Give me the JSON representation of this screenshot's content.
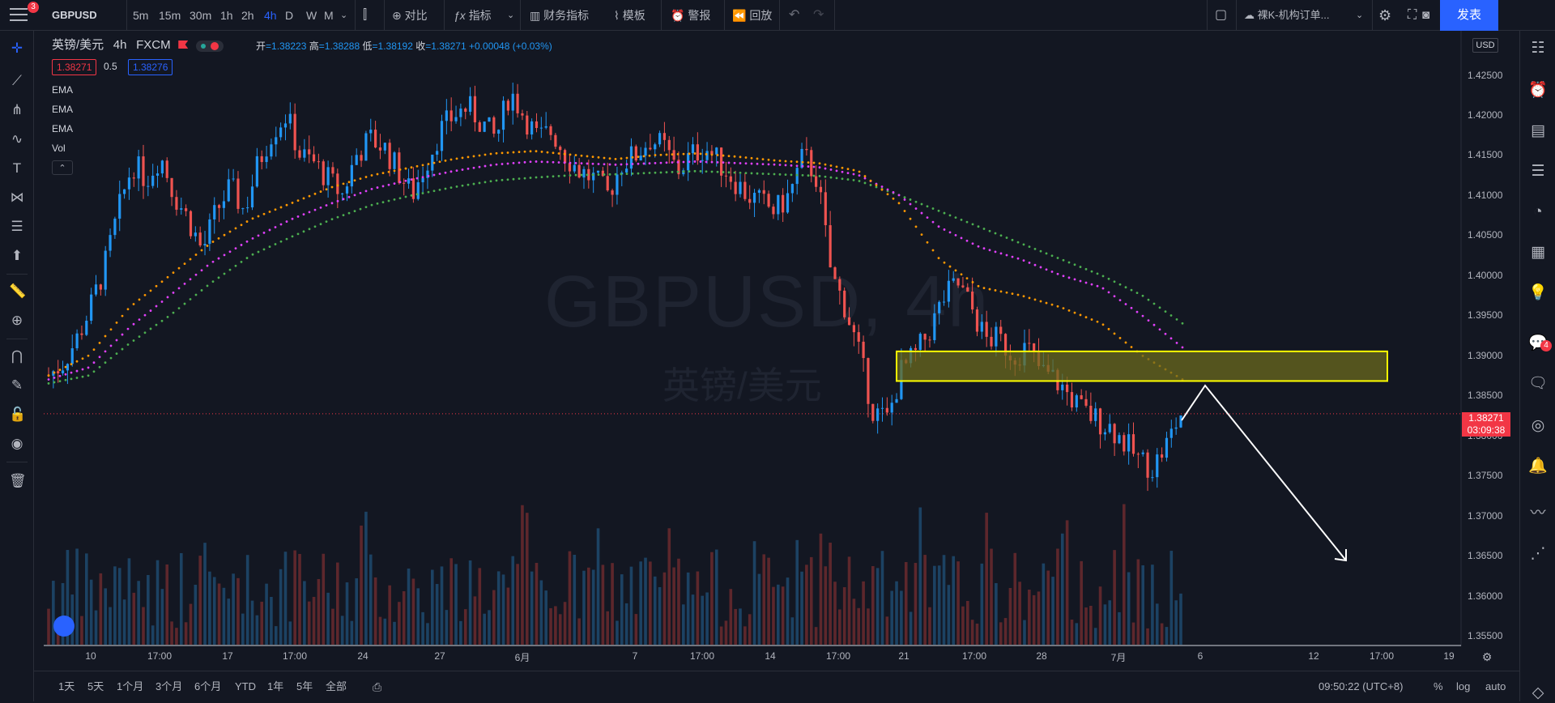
{
  "topbar": {
    "notif_count": "3",
    "symbol": "GBPUSD",
    "intervals": [
      "5m",
      "15m",
      "30m",
      "1h",
      "2h",
      "4h",
      "D",
      "W",
      "M"
    ],
    "active_interval": "4h",
    "compare_label": "对比",
    "indicators_label": "指标",
    "financials_label": "财务指标",
    "templates_label": "模板",
    "alert_label": "警报",
    "replay_label": "回放",
    "layout_name": "裸K-机构订单...",
    "publish_label": "发表"
  },
  "legend": {
    "title": "英镑/美元",
    "interval": "4h",
    "exchange": "FXCM",
    "open_label": "开",
    "open": "=1.38223",
    "high_label": "高",
    "high": "=1.38288",
    "low_label": "低",
    "low": "=1.38192",
    "close_label": "收",
    "close": "=1.38271",
    "change": "+0.00048 (+0.03%)",
    "bid": "1.38271",
    "spread": "0.5",
    "ask": "1.38276",
    "indicators": [
      "EMA",
      "EMA",
      "EMA",
      "Vol"
    ],
    "collapse_icon": "chevron-up-icon"
  },
  "watermark": {
    "line1": "GBPUSD, 4h",
    "line2": "英镑/美元"
  },
  "price_axis": {
    "currency": "USD",
    "current_price": "1.38271",
    "countdown": "03:09:38"
  },
  "time_axis": {
    "labels": [
      "10",
      "17:00",
      "17",
      "17:00",
      "24",
      "27",
      "6月",
      "7",
      "17:00",
      "14",
      "17:00",
      "21",
      "17:00",
      "28",
      "7月",
      "6",
      "12",
      "17:00",
      "19"
    ]
  },
  "bottombar": {
    "ranges": [
      "1天",
      "5天",
      "1个月",
      "3个月",
      "6个月",
      "YTD",
      "1年",
      "5年",
      "全部"
    ],
    "clock": "09:50:22 (UTC+8)",
    "pct": "%",
    "log": "log",
    "auto": "auto"
  },
  "right_badge": "4",
  "colors": {
    "up": "#2196f3",
    "down": "#ef5350",
    "ema_fast": "#ff9800",
    "ema_mid": "#e040fb",
    "ema_slow": "#4caf50",
    "zone_fill": "#6b6a1e",
    "zone_border": "#ffff00"
  },
  "chart_data": {
    "type": "candlestick",
    "symbol": "GBPUSD",
    "interval": "4h",
    "ylim": [
      1.3545,
      1.4295
    ],
    "y_ticks": [
      "1.35500",
      "1.36000",
      "1.36500",
      "1.37000",
      "1.37500",
      "1.38000",
      "1.38500",
      "1.39000",
      "1.39500",
      "1.40000",
      "1.40500",
      "1.41000",
      "1.41500",
      "1.42000",
      "1.42500"
    ],
    "close_path": [
      1.3875,
      1.389,
      1.392,
      1.396,
      1.401,
      1.408,
      1.414,
      1.412,
      1.415,
      1.41,
      1.407,
      1.403,
      1.408,
      1.411,
      1.408,
      1.414,
      1.418,
      1.42,
      1.415,
      1.414,
      1.412,
      1.41,
      1.415,
      1.417,
      1.416,
      1.413,
      1.41,
      1.414,
      1.418,
      1.42,
      1.421,
      1.419,
      1.417,
      1.423,
      1.42,
      1.417,
      1.418,
      1.415,
      1.413,
      1.412,
      1.41,
      1.414,
      1.415,
      1.417,
      1.416,
      1.413,
      1.415,
      1.416,
      1.414,
      1.412,
      1.41,
      1.409,
      1.408,
      1.41,
      1.415,
      1.412,
      1.4,
      1.396,
      1.39,
      1.383,
      1.382,
      1.388,
      1.39,
      1.393,
      1.397,
      1.399,
      1.396,
      1.392,
      1.392,
      1.39,
      1.391,
      1.388,
      1.387,
      1.385,
      1.383,
      1.382,
      1.381,
      1.379,
      1.377,
      1.376,
      1.379,
      1.3827
    ],
    "ema_fast": [
      1.3875,
      1.39,
      1.396,
      1.4,
      1.404,
      1.407,
      1.409,
      1.411,
      1.4125,
      1.4135,
      1.4145,
      1.4152,
      1.4155,
      1.415,
      1.4145,
      1.415,
      1.4152,
      1.4148,
      1.4143,
      1.414,
      1.413,
      1.409,
      1.402,
      1.3985,
      1.3975,
      1.396,
      1.394,
      1.39,
      1.387
    ],
    "ema_mid": [
      1.387,
      1.3885,
      1.3935,
      1.3975,
      1.4015,
      1.4045,
      1.407,
      1.409,
      1.4108,
      1.412,
      1.413,
      1.4138,
      1.4142,
      1.414,
      1.4138,
      1.414,
      1.4142,
      1.414,
      1.4138,
      1.4135,
      1.4125,
      1.41,
      1.406,
      1.4035,
      1.402,
      1.4,
      1.3985,
      1.395,
      1.391
    ],
    "ema_slow": [
      1.3865,
      1.3875,
      1.3915,
      1.395,
      1.399,
      1.4025,
      1.4048,
      1.407,
      1.4088,
      1.41,
      1.411,
      1.4118,
      1.4122,
      1.4125,
      1.4126,
      1.4128,
      1.413,
      1.4128,
      1.4126,
      1.4124,
      1.4118,
      1.41,
      1.408,
      1.406,
      1.404,
      1.402,
      1.4,
      1.3975,
      1.394
    ],
    "zone": {
      "y_top": 1.3905,
      "y_bottom": 1.3868
    }
  }
}
